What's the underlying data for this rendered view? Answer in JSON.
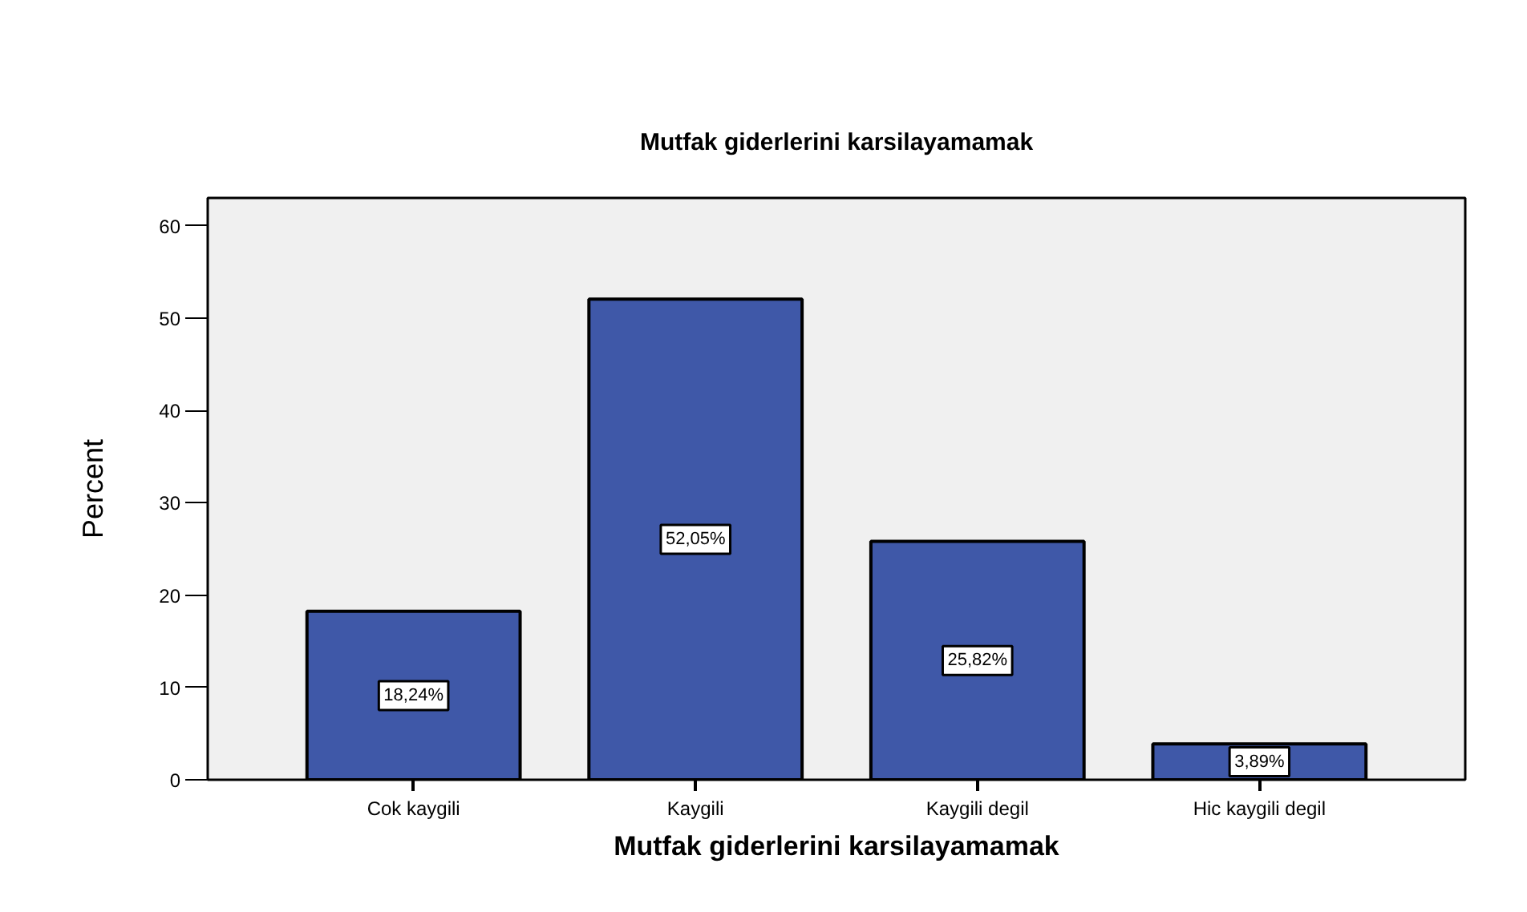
{
  "chart_data": {
    "type": "bar",
    "title": "Mutfak giderlerini karsilayamamak",
    "xlabel": "Mutfak giderlerini karsilayamamak",
    "ylabel": "Percent",
    "categories": [
      "Cok kaygili",
      "Kaygili",
      "Kaygili degil",
      "Hic kaygili degil"
    ],
    "values": [
      18.24,
      52.05,
      25.82,
      3.89
    ],
    "value_labels": [
      "18,24%",
      "52,05%",
      "25,82%",
      "3,89%"
    ],
    "color": "#3f58a8",
    "ylim": [
      0,
      63
    ],
    "yticks": [
      0,
      10,
      20,
      30,
      40,
      50,
      60
    ],
    "grid": false
  }
}
